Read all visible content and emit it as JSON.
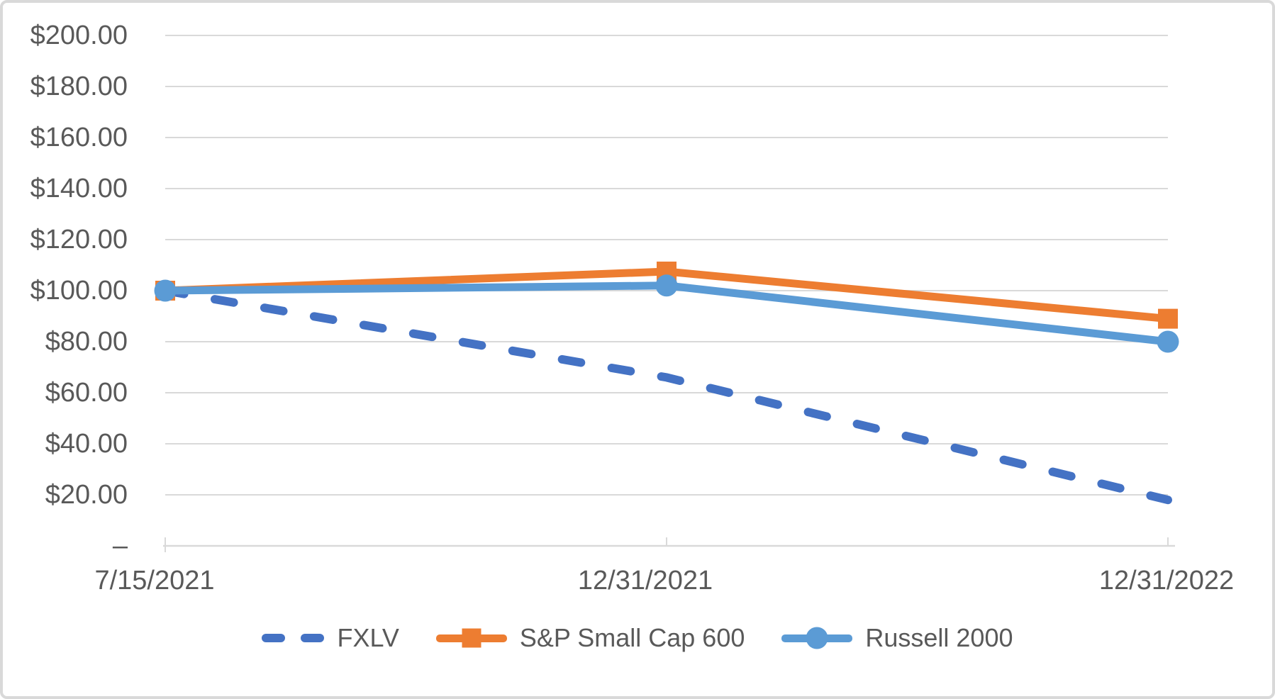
{
  "chart_data": {
    "type": "line",
    "x_categories": [
      "7/15/2021",
      "12/31/2021",
      "12/31/2022"
    ],
    "y_axis": {
      "min": 0,
      "max": 200,
      "step": 20,
      "tick_labels": [
        "$200.00",
        "$180.00",
        "$160.00",
        "$140.00",
        "$120.00",
        "$100.00",
        "$80.00",
        "$60.00",
        "$40.00",
        "$20.00",
        "–"
      ]
    },
    "series": [
      {
        "name": "FXLV",
        "color": "#4472C4",
        "line_style": "dashed",
        "marker": "none",
        "values": [
          100,
          66,
          18
        ]
      },
      {
        "name": "S&P Small Cap 600",
        "color": "#ED7D31",
        "line_style": "solid",
        "marker": "square",
        "values": [
          100,
          107.5,
          89
        ]
      },
      {
        "name": "Russell 2000",
        "color": "#5B9BD5",
        "line_style": "solid",
        "marker": "circle",
        "values": [
          100,
          102,
          80
        ]
      }
    ],
    "grid": true,
    "legend_position": "bottom"
  },
  "colors": {
    "gridline": "#D9D9D9",
    "axis_line": "#D9D9D9",
    "axis_text": "#595959",
    "frame_border": "#D9D9D9",
    "background": "#FFFFFF"
  }
}
